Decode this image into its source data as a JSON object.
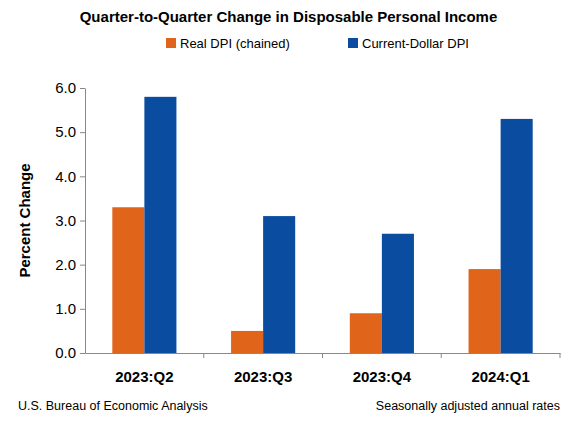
{
  "chart_data": {
    "type": "bar",
    "title": "Quarter-to-Quarter Change in Disposable Personal Income",
    "y_label": "Percent Change",
    "source": "U.S. Bureau of Economic Analysis",
    "note": "Seasonally adjusted annual rates",
    "categories": [
      "2023:Q2",
      "2023:Q3",
      "2023:Q4",
      "2024:Q1"
    ],
    "series": [
      {
        "name": "Real DPI (chained)",
        "color": "#E0651B",
        "values": [
          3.3,
          0.5,
          0.9,
          1.9
        ]
      },
      {
        "name": "Current-Dollar DPI",
        "color": "#0A4CA0",
        "values": [
          5.8,
          3.1,
          2.7,
          5.3
        ]
      }
    ],
    "ylim": [
      0,
      6
    ],
    "yticks": [
      {
        "value": 0,
        "label": "0.0"
      },
      {
        "value": 1,
        "label": "1.0"
      },
      {
        "value": 2,
        "label": "2.0"
      },
      {
        "value": 3,
        "label": "3.0"
      },
      {
        "value": 4,
        "label": "4.0"
      },
      {
        "value": 5,
        "label": "5.0"
      },
      {
        "value": 6,
        "label": "6.0"
      }
    ],
    "legend": "top",
    "grid": false
  }
}
